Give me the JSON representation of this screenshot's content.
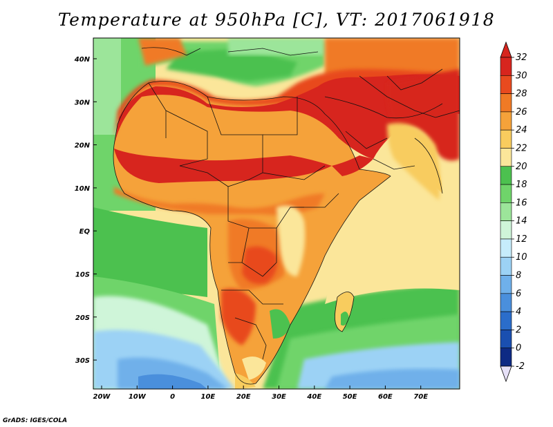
{
  "title": "Temperature at 950hPa [C], VT: 2017061918",
  "credit": "GrADS: IGES/COLA",
  "map": {
    "variable": "Temperature at 950hPa",
    "units": "C",
    "valid_time": "2017061918",
    "lon_range": [
      -25,
      80
    ],
    "lat_range": [
      -36,
      45
    ],
    "lon_ticks": [
      "20W",
      "10W",
      "0",
      "10E",
      "20E",
      "30E",
      "40E",
      "50E",
      "60E",
      "70E"
    ],
    "lat_ticks": [
      "40N",
      "30N",
      "20N",
      "10N",
      "EQ",
      "10S",
      "20S",
      "30S"
    ]
  },
  "colorbar": {
    "levels": [
      "32",
      "30",
      "28",
      "26",
      "24",
      "22",
      "20",
      "18",
      "16",
      "14",
      "12",
      "10",
      "8",
      "6",
      "4",
      "2",
      "0",
      "-2"
    ],
    "colors": [
      "#d7251e",
      "#e84a1f",
      "#f07a25",
      "#f5a23a",
      "#f8cc5e",
      "#fbe69a",
      "#4cc14f",
      "#6fd46a",
      "#9ce59a",
      "#cff5d9",
      "#c6ecfb",
      "#9cd2f5",
      "#6fb0ea",
      "#4a8fdc",
      "#2b6dca",
      "#1a4fb0",
      "#0e2a84"
    ],
    "top_color": "#d7251e",
    "bottom_color": "#e6e0f7"
  },
  "colors": {
    "ocean_tropical": "#fbe69a",
    "ocean_warm": "#f8cc5e",
    "ocean_green": "#4cc14f",
    "ocean_south": "#6fd46a",
    "ocean_cold": "#9cd2f5",
    "sahara": "#d7251e",
    "border": "#111111"
  }
}
